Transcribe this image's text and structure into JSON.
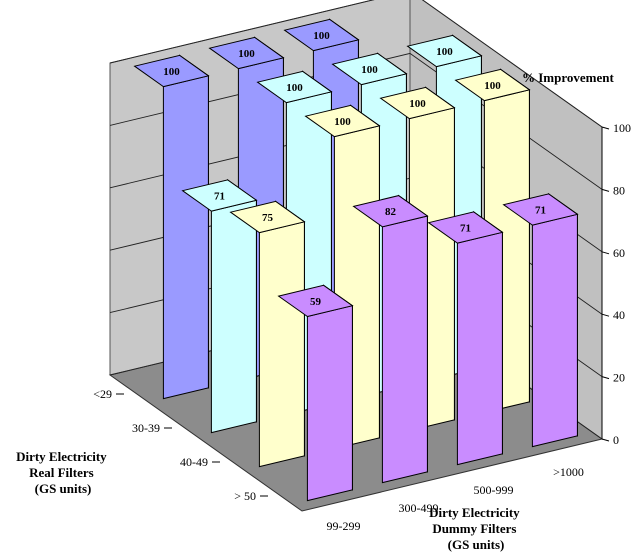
{
  "chart_data": {
    "type": "bar",
    "subtype": "3d-grid",
    "zlabel": "% Improvement",
    "zlim": [
      0,
      100
    ],
    "zticks": [
      "0",
      "20",
      "40",
      "60",
      "80",
      "100"
    ],
    "real_filters_label": [
      "Dirty Electricity",
      "Real Filters",
      "(GS units)"
    ],
    "dummy_filters_label": [
      "Dirty Electricity",
      "Dummy Filters",
      "(GS units)"
    ],
    "real_categories": [
      "<29",
      "30-39",
      "40-49",
      "> 50"
    ],
    "dummy_categories": [
      "99-299",
      "300-499",
      "500-999",
      ">1000"
    ],
    "grid": true,
    "colors": {
      "row_lt29": "#9a9aff",
      "row_30_39": "#cdffff",
      "row_40_49": "#ffffcc",
      "row_gt50": "#c98cff",
      "wall": "#c8c8c8",
      "floor": "#8c8c8c"
    },
    "values": [
      {
        "real": "<29",
        "dummy": "99-299",
        "value": 100,
        "label": "100"
      },
      {
        "real": "<29",
        "dummy": "300-499",
        "value": 100,
        "label": "100"
      },
      {
        "real": "<29",
        "dummy": "500-999",
        "value": 100,
        "label": "100"
      },
      {
        "real": "30-39",
        "dummy": "99-299",
        "value": 71,
        "label": "71"
      },
      {
        "real": "30-39",
        "dummy": "300-499",
        "value": 100,
        "label": "100"
      },
      {
        "real": "30-39",
        "dummy": "500-999",
        "value": 100,
        "label": "100"
      },
      {
        "real": "30-39",
        "dummy": ">1000",
        "value": 100,
        "label": "100"
      },
      {
        "real": "40-49",
        "dummy": "99-299",
        "value": 75,
        "label": "75"
      },
      {
        "real": "40-49",
        "dummy": "300-499",
        "value": 100,
        "label": "100"
      },
      {
        "real": "40-49",
        "dummy": "500-999",
        "value": 100,
        "label": "100"
      },
      {
        "real": "40-49",
        "dummy": ">1000",
        "value": 100,
        "label": "100"
      },
      {
        "real": "> 50",
        "dummy": "99-299",
        "value": 59,
        "label": "59"
      },
      {
        "real": "> 50",
        "dummy": "300-499",
        "value": 82,
        "label": "82"
      },
      {
        "real": "> 50",
        "dummy": "500-999",
        "value": 71,
        "label": "71"
      },
      {
        "real": "> 50",
        "dummy": ">1000",
        "value": 71,
        "label": "71"
      }
    ]
  }
}
